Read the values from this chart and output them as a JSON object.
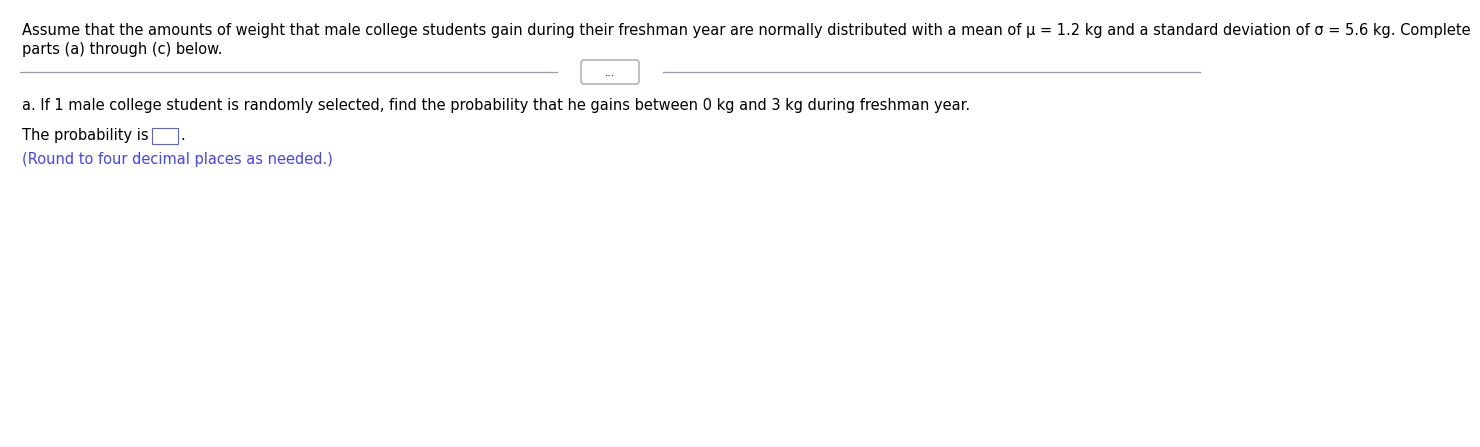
{
  "header_line1": "Assume that the amounts of weight that male college students gain during their freshman year are normally distributed with a mean of μ = 1.2 kg and a standard deviation of σ = 5.6 kg. Complete",
  "header_line2": "parts (a) through (c) below.",
  "divider_dots": "...",
  "part_a_text": "a. If 1 male college student is randomly selected, find the probability that he gains between 0 kg and 3 kg during freshman year.",
  "probability_label": "The probability is",
  "period": ".",
  "round_note": "(Round to four decimal places as needed.)",
  "background_color": "#ffffff",
  "text_color": "#000000",
  "blue_text_color": "#4444ff",
  "header_fontsize": 10.5,
  "body_fontsize": 10.5,
  "line_color": "#9999aa",
  "box_edge_color": "#5566cc"
}
